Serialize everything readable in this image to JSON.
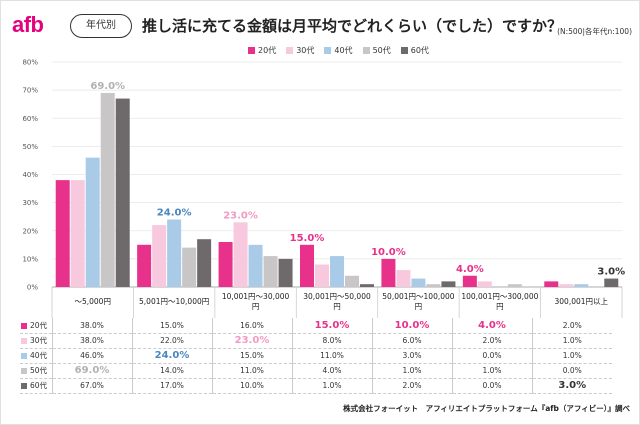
{
  "header": {
    "logo": "afb",
    "badge": "年代別",
    "title": "推し活に充てる金額は月平均でどれくらい（でした）ですか？",
    "sample": "(N:500|各年代n:100)"
  },
  "credit": "株式会社フォーイット　アフィリエイトプラットフォーム『afb（アフィビー）』調べ",
  "chart_data": {
    "type": "bar",
    "categories": [
      "～5,000円",
      "5,001円～10,000円",
      "10,001円～30,000円",
      "30,001円～50,000円",
      "50,001円～100,000円",
      "100,001円～300,000円",
      "300,001円以上"
    ],
    "series": [
      {
        "name": "20代",
        "color": "#e8318a",
        "values": [
          38.0,
          15.0,
          16.0,
          15.0,
          10.0,
          4.0,
          2.0
        ],
        "labels": [
          "38.0%",
          "15.0%",
          "16.0%",
          "15.0%",
          "10.0%",
          "4.0%",
          "2.0%"
        ]
      },
      {
        "name": "30代",
        "color": "#f8c8df",
        "values": [
          38.0,
          22.0,
          23.0,
          8.0,
          6.0,
          2.0,
          1.0
        ],
        "labels": [
          "38.0%",
          "22.0%",
          "23.0%",
          "8.0%",
          "6.0%",
          "2.0%",
          "1.0%"
        ]
      },
      {
        "name": "40代",
        "color": "#a9cbe8",
        "values": [
          46.0,
          24.0,
          15.0,
          11.0,
          3.0,
          0.0,
          1.0
        ],
        "labels": [
          "46.0%",
          "24.0%",
          "15.0%",
          "11.0%",
          "3.0%",
          "0.0%",
          "1.0%"
        ]
      },
      {
        "name": "50代",
        "color": "#c9c6c7",
        "values": [
          69.0,
          14.0,
          11.0,
          4.0,
          1.0,
          1.0,
          0.0
        ],
        "labels": [
          "69.0%",
          "14.0%",
          "11.0%",
          "4.0%",
          "1.0%",
          "1.0%",
          "0.0%"
        ]
      },
      {
        "name": "60代",
        "color": "#6e6a6b",
        "values": [
          67.0,
          17.0,
          10.0,
          1.0,
          2.0,
          0.0,
          3.0
        ],
        "labels": [
          "67.0%",
          "17.0%",
          "10.0%",
          "1.0%",
          "2.0%",
          "0.0%",
          "3.0%"
        ]
      }
    ],
    "highlights": [
      {
        "category": 0,
        "series": 3,
        "text": "69.0%",
        "color": "#b3b0b1"
      },
      {
        "category": 1,
        "series": 2,
        "text": "24.0%",
        "color": "#4a86c0"
      },
      {
        "category": 2,
        "series": 1,
        "text": "23.0%",
        "color": "#f19bc3"
      },
      {
        "category": 3,
        "series": 0,
        "text": "15.0%",
        "color": "#e8318a"
      },
      {
        "category": 4,
        "series": 0,
        "text": "10.0%",
        "color": "#e8318a"
      },
      {
        "category": 5,
        "series": 0,
        "text": "4.0%",
        "color": "#e8318a"
      },
      {
        "category": 6,
        "series": 4,
        "text": "3.0%",
        "color": "#333333"
      }
    ],
    "yticks": [
      "0%",
      "10%",
      "20%",
      "30%",
      "40%",
      "50%",
      "60%",
      "70%",
      "80%"
    ],
    "ylim": [
      0,
      80
    ],
    "grid": true,
    "legend_position": "top"
  }
}
